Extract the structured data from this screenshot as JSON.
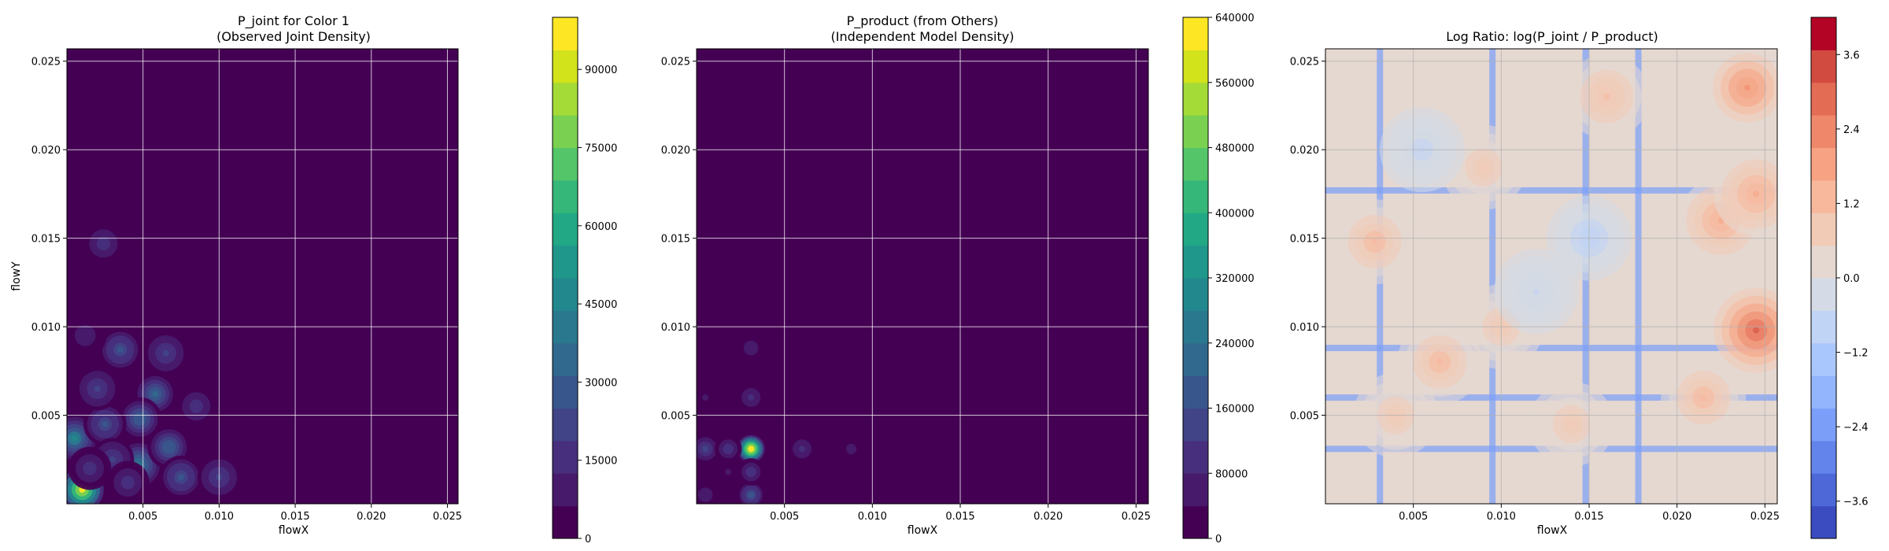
{
  "chart_data": [
    {
      "type": "heatmap",
      "title": "P_joint for Color 1",
      "subtitle": "(Observed Joint Density)",
      "xlabel": "flowX",
      "ylabel": "flowY",
      "xlim": [
        0.0,
        0.0257
      ],
      "ylim": [
        0.0,
        0.0257
      ],
      "xticks": [
        "0.005",
        "0.010",
        "0.015",
        "0.020",
        "0.025"
      ],
      "yticks": [
        "0.005",
        "0.010",
        "0.015",
        "0.020",
        "0.025"
      ],
      "grid": true,
      "colormap": "viridis",
      "colorbar": {
        "min": 0,
        "max": 100000,
        "ticks": [
          "0",
          "15000",
          "30000",
          "45000",
          "60000",
          "75000",
          "90000"
        ],
        "colors": [
          "#440154",
          "#481a6c",
          "#472f7d",
          "#414487",
          "#39568c",
          "#31688e",
          "#2a788e",
          "#23888e",
          "#1f988b",
          "#22a884",
          "#35b779",
          "#54c568",
          "#7ad151",
          "#a5db36",
          "#d2e21b",
          "#fde725"
        ]
      },
      "background_value": 0,
      "hotspots": [
        {
          "x": 0.001,
          "y": 0.0008,
          "value": 95000
        },
        {
          "x": 0.0005,
          "y": 0.0037,
          "value": 45000
        },
        {
          "x": 0.0047,
          "y": 0.0022,
          "value": 40000
        },
        {
          "x": 0.0058,
          "y": 0.0062,
          "value": 35000
        },
        {
          "x": 0.0067,
          "y": 0.0032,
          "value": 30000
        },
        {
          "x": 0.0035,
          "y": 0.0087,
          "value": 25000
        },
        {
          "x": 0.0048,
          "y": 0.0048,
          "value": 30000
        },
        {
          "x": 0.0025,
          "y": 0.0045,
          "value": 25000
        },
        {
          "x": 0.0075,
          "y": 0.0015,
          "value": 25000
        },
        {
          "x": 0.003,
          "y": 0.0025,
          "value": 22000
        },
        {
          "x": 0.002,
          "y": 0.0065,
          "value": 20000
        },
        {
          "x": 0.0065,
          "y": 0.0085,
          "value": 20000
        },
        {
          "x": 0.01,
          "y": 0.0015,
          "value": 20000
        },
        {
          "x": 0.0024,
          "y": 0.0147,
          "value": 15000
        },
        {
          "x": 0.0012,
          "y": 0.0095,
          "value": 12000
        },
        {
          "x": 0.0085,
          "y": 0.0055,
          "value": 15000
        },
        {
          "x": 0.004,
          "y": 0.0012,
          "value": 18000
        },
        {
          "x": 0.0015,
          "y": 0.002,
          "value": 18000
        }
      ]
    },
    {
      "type": "heatmap",
      "title": "P_product (from Others)",
      "subtitle": "(Independent Model Density)",
      "xlabel": "flowX",
      "ylabel": "",
      "xlim": [
        0.0,
        0.0257
      ],
      "ylim": [
        0.0,
        0.0257
      ],
      "xticks": [
        "0.005",
        "0.010",
        "0.015",
        "0.020",
        "0.025"
      ],
      "yticks": [
        "0.005",
        "0.010",
        "0.015",
        "0.020",
        "0.025"
      ],
      "grid": true,
      "colormap": "viridis",
      "colorbar": {
        "min": 0,
        "max": 640000,
        "ticks": [
          "0",
          "80000",
          "160000",
          "240000",
          "320000",
          "400000",
          "480000",
          "560000",
          "640000"
        ],
        "colors": [
          "#440154",
          "#481a6c",
          "#472f7d",
          "#414487",
          "#39568c",
          "#31688e",
          "#2a788e",
          "#23888e",
          "#1f988b",
          "#22a884",
          "#35b779",
          "#54c568",
          "#7ad151",
          "#a5db36",
          "#d2e21b",
          "#fde725"
        ]
      },
      "background_value": 0,
      "hotspots": [
        {
          "x": 0.0031,
          "y": 0.0031,
          "value": 600000
        },
        {
          "x": 0.0031,
          "y": 0.0005,
          "value": 160000
        },
        {
          "x": 0.0005,
          "y": 0.0031,
          "value": 120000
        },
        {
          "x": 0.0018,
          "y": 0.0031,
          "value": 100000
        },
        {
          "x": 0.0031,
          "y": 0.0018,
          "value": 100000
        },
        {
          "x": 0.0031,
          "y": 0.006,
          "value": 80000
        },
        {
          "x": 0.006,
          "y": 0.0031,
          "value": 80000
        },
        {
          "x": 0.0005,
          "y": 0.0005,
          "value": 60000
        },
        {
          "x": 0.0031,
          "y": 0.0088,
          "value": 60000
        },
        {
          "x": 0.0088,
          "y": 0.0031,
          "value": 50000
        },
        {
          "x": 0.0005,
          "y": 0.006,
          "value": 40000
        },
        {
          "x": 0.0018,
          "y": 0.0018,
          "value": 40000
        }
      ]
    },
    {
      "type": "heatmap",
      "title": "Log Ratio: log(P_joint / P_product)",
      "subtitle": "",
      "xlabel": "flowX",
      "ylabel": "",
      "xlim": [
        0.0,
        0.0257
      ],
      "ylim": [
        0.0,
        0.0257
      ],
      "xticks": [
        "0.005",
        "0.010",
        "0.015",
        "0.020",
        "0.025"
      ],
      "yticks": [
        "0.005",
        "0.010",
        "0.015",
        "0.020",
        "0.025"
      ],
      "grid": true,
      "colormap": "coolwarm",
      "colorbar": {
        "min": -4.2,
        "max": 4.2,
        "ticks": [
          "−3.6",
          "−2.4",
          "−1.2",
          "0.0",
          "1.2",
          "2.4",
          "3.6"
        ],
        "colors": [
          "#3b4cc0",
          "#4e68d8",
          "#6384eb",
          "#7b9ff9",
          "#93b5fe",
          "#aac7fd",
          "#c0d4f5",
          "#d4dbe6",
          "#e5d8d1",
          "#f2cbb7",
          "#f7b89c",
          "#f6a283",
          "#ef886b",
          "#e36c55",
          "#d24b40",
          "#b40426"
        ]
      },
      "background_value": 0,
      "hotspots": [
        {
          "x": 0.0245,
          "y": 0.0098,
          "value": 3.4
        },
        {
          "x": 0.024,
          "y": 0.0235,
          "value": 2.4
        },
        {
          "x": 0.0225,
          "y": 0.016,
          "value": 1.8
        },
        {
          "x": 0.0245,
          "y": 0.0175,
          "value": 1.6
        },
        {
          "x": 0.0215,
          "y": 0.006,
          "value": 1.4
        },
        {
          "x": 0.0065,
          "y": 0.008,
          "value": 1.4
        },
        {
          "x": 0.0028,
          "y": 0.0148,
          "value": 1.4
        },
        {
          "x": 0.016,
          "y": 0.023,
          "value": 1.2
        },
        {
          "x": 0.01,
          "y": 0.01,
          "value": 1.0
        },
        {
          "x": 0.014,
          "y": 0.0045,
          "value": 1.0
        },
        {
          "x": 0.009,
          "y": 0.019,
          "value": 0.9
        },
        {
          "x": 0.004,
          "y": 0.005,
          "value": 1.0
        },
        {
          "x": 0.015,
          "y": 0.015,
          "value": -0.8
        },
        {
          "x": 0.012,
          "y": 0.012,
          "value": -0.6
        },
        {
          "x": 0.0055,
          "y": 0.02,
          "value": -0.7
        }
      ],
      "cold_lines_x": [
        0.0031,
        0.0095,
        0.0148,
        0.0178
      ],
      "cold_lines_y": [
        0.0031,
        0.0177,
        0.006,
        0.0088
      ]
    }
  ]
}
